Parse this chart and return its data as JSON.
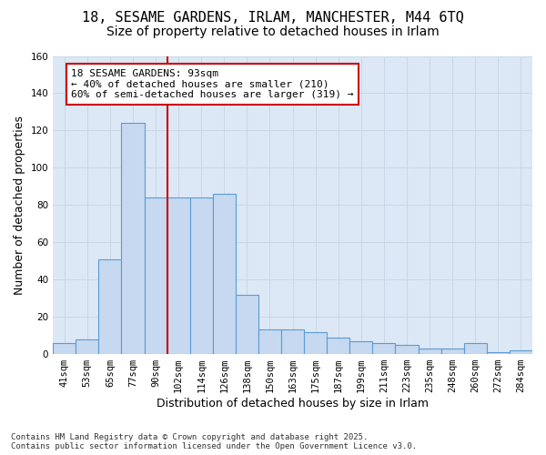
{
  "title_line1": "18, SESAME GARDENS, IRLAM, MANCHESTER, M44 6TQ",
  "title_line2": "Size of property relative to detached houses in Irlam",
  "xlabel": "Distribution of detached houses by size in Irlam",
  "ylabel": "Number of detached properties",
  "categories": [
    "41sqm",
    "53sqm",
    "65sqm",
    "77sqm",
    "90sqm",
    "102sqm",
    "114sqm",
    "126sqm",
    "138sqm",
    "150sqm",
    "163sqm",
    "175sqm",
    "187sqm",
    "199sqm",
    "211sqm",
    "223sqm",
    "235sqm",
    "248sqm",
    "260sqm",
    "272sqm",
    "284sqm"
  ],
  "values": [
    6,
    8,
    51,
    124,
    84,
    84,
    84,
    86,
    32,
    13,
    13,
    12,
    9,
    7,
    6,
    5,
    3,
    3,
    6,
    1,
    2
  ],
  "bar_color": "#c6d9f0",
  "bar_edge_color": "#5b9bd5",
  "red_line_index": 4.5,
  "annotation_text": "18 SESAME GARDENS: 93sqm\n← 40% of detached houses are smaller (210)\n60% of semi-detached houses are larger (319) →",
  "annotation_box_facecolor": "#ffffff",
  "annotation_box_edgecolor": "#cc0000",
  "red_line_color": "#cc0000",
  "ylim": [
    0,
    160
  ],
  "yticks": [
    0,
    20,
    40,
    60,
    80,
    100,
    120,
    140,
    160
  ],
  "grid_color": "#c8d8e8",
  "bg_color": "#dce8f5",
  "footer_line1": "Contains HM Land Registry data © Crown copyright and database right 2025.",
  "footer_line2": "Contains public sector information licensed under the Open Government Licence v3.0.",
  "title_fontsize": 11,
  "subtitle_fontsize": 10,
  "axis_label_fontsize": 9,
  "tick_fontsize": 7.5,
  "annotation_fontsize": 8,
  "footer_fontsize": 6.5
}
